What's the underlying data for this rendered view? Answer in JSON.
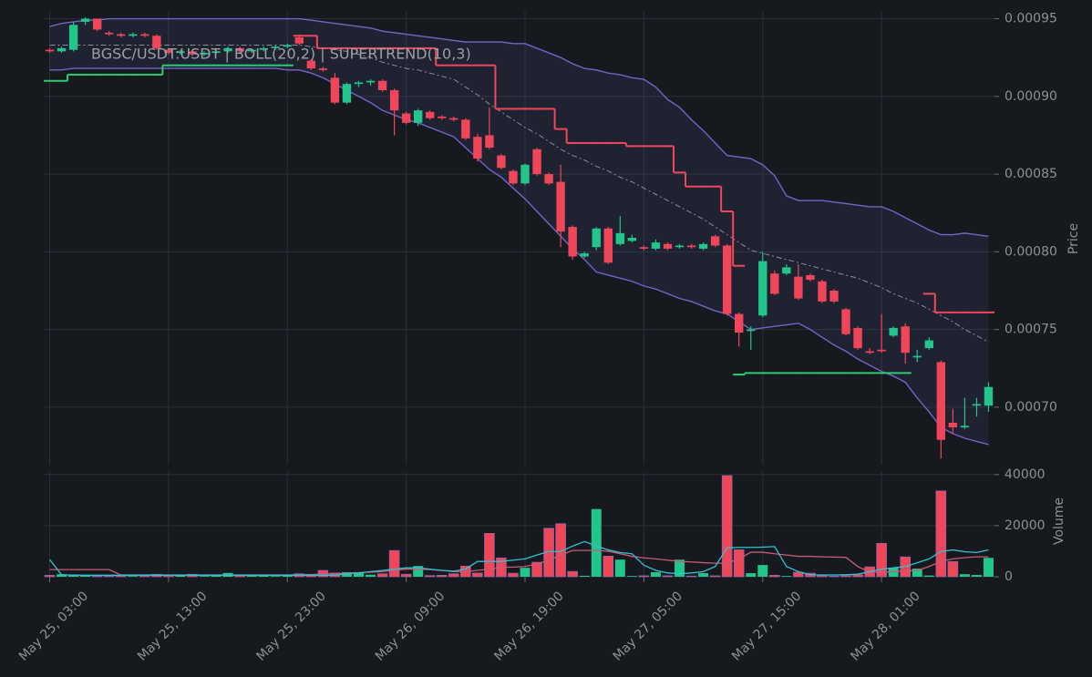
{
  "chart_data": [
    {
      "type": "candlestick",
      "title": "BGSC/USDT:USDT | BOLL(20,2) | SUPERTREND(10,3)",
      "y_label": "Price",
      "up_color": "#22c58b",
      "down_color": "#f0465a",
      "ylim": [
        0.000663,
        0.000955
      ],
      "yticks": [
        {
          "value": 0.0007,
          "label": "0.00070"
        },
        0.00075,
        {
          "value": 0.0008,
          "label": "0.00080"
        },
        0.00085,
        {
          "value": 0.0009,
          "label": "0.00090"
        },
        0.00095
      ],
      "grid": true,
      "open": [
        0.00093,
        0.000929,
        0.00093,
        0.000948,
        0.00095,
        0.000941,
        0.00094,
        0.000939,
        0.00094,
        0.000939,
        0.00093,
        0.000928,
        0.000929,
        0.000927,
        0.000928,
        0.000929,
        0.000931,
        0.000929,
        0.00093,
        0.000931,
        0.000932,
        0.000938,
        0.000923,
        0.000918,
        0.000912,
        0.000896,
        0.000908,
        0.000909,
        0.00091,
        0.000904,
        0.000889,
        0.000883,
        0.00089,
        0.000887,
        0.000886,
        0.000885,
        0.000874,
        0.000875,
        0.000862,
        0.000852,
        0.000844,
        0.000866,
        0.00085,
        0.000845,
        0.000816,
        0.000797,
        0.000803,
        0.000815,
        0.000805,
        0.000807,
        0.000803,
        0.000802,
        0.000805,
        0.000803,
        0.000804,
        0.000802,
        0.00081,
        0.000804,
        0.00076,
        0.000749,
        0.000759,
        0.000786,
        0.000786,
        0.000784,
        0.000785,
        0.000781,
        0.000775,
        0.000763,
        0.000751,
        0.000736,
        0.000737,
        0.000746,
        0.000752,
        0.000732,
        0.000738,
        0.000729,
        0.00069,
        0.000687,
        0.000701,
        0.000701
      ],
      "high": [
        0.000931,
        0.000932,
        0.000948,
        0.000951,
        0.00095,
        0.000942,
        0.000941,
        0.000941,
        0.000941,
        0.00094,
        0.000931,
        0.00093,
        0.00093,
        0.000929,
        0.00093,
        0.000932,
        0.000932,
        0.000931,
        0.000932,
        0.000933,
        0.000934,
        0.00094,
        0.000924,
        0.000919,
        0.000915,
        0.000909,
        0.00091,
        0.000911,
        0.000911,
        0.000905,
        0.00089,
        0.000892,
        0.000891,
        0.000888,
        0.000887,
        0.000886,
        0.000876,
        0.000893,
        0.000863,
        0.000853,
        0.000857,
        0.000867,
        0.000851,
        0.000856,
        0.000817,
        0.0008,
        0.000816,
        0.000816,
        0.000823,
        0.000811,
        0.000804,
        0.000808,
        0.000806,
        0.000805,
        0.000805,
        0.000806,
        0.000811,
        0.000805,
        0.000761,
        0.000752,
        0.0008,
        0.000788,
        0.000792,
        0.000792,
        0.000786,
        0.000782,
        0.000776,
        0.000764,
        0.000752,
        0.000738,
        0.00076,
        0.000752,
        0.000754,
        0.000737,
        0.000745,
        0.00073,
        0.000699,
        0.000706,
        0.000706,
        0.000716
      ],
      "low": [
        0.000928,
        0.000928,
        0.000929,
        0.000946,
        0.000942,
        0.000939,
        0.000938,
        0.000938,
        0.000938,
        0.00093,
        0.000927,
        0.000927,
        0.000926,
        0.000926,
        0.000927,
        0.000928,
        0.000928,
        0.000928,
        0.000929,
        0.00093,
        0.000931,
        0.000933,
        0.000917,
        0.000916,
        0.000895,
        0.000895,
        0.000906,
        0.000907,
        0.000903,
        0.000875,
        0.000882,
        0.000881,
        0.000885,
        0.000885,
        0.000884,
        0.000872,
        0.000858,
        0.000866,
        0.000853,
        0.000843,
        0.000843,
        0.000849,
        0.000843,
        0.000803,
        0.000795,
        0.000796,
        0.000801,
        0.000792,
        0.000804,
        0.000806,
        0.000801,
        0.000801,
        0.000801,
        0.000802,
        0.000802,
        0.000801,
        0.000803,
        0.000759,
        0.000739,
        0.000737,
        0.000758,
        0.000772,
        0.000785,
        0.000769,
        0.000781,
        0.000767,
        0.000767,
        0.000746,
        0.000737,
        0.000734,
        0.000735,
        0.000745,
        0.000728,
        0.000729,
        0.000737,
        0.000667,
        0.000683,
        0.000686,
        0.000694,
        0.000697
      ],
      "close": [
        0.000929,
        0.000931,
        0.000946,
        0.00095,
        0.000943,
        0.00094,
        0.000939,
        0.00094,
        0.000939,
        0.000931,
        0.000928,
        0.000929,
        0.000927,
        0.000928,
        0.000929,
        0.000931,
        0.000929,
        0.00093,
        0.000931,
        0.000932,
        0.000933,
        0.000934,
        0.000918,
        0.000917,
        0.000896,
        0.000908,
        0.000909,
        0.00091,
        0.000904,
        0.000891,
        0.000883,
        0.000891,
        0.000886,
        0.000886,
        0.000885,
        0.000873,
        0.00086,
        0.000867,
        0.000854,
        0.000844,
        0.000856,
        0.00085,
        0.000844,
        0.000813,
        0.000797,
        0.000799,
        0.000815,
        0.000793,
        0.000812,
        0.000809,
        0.000802,
        0.000806,
        0.000802,
        0.000804,
        0.000803,
        0.000805,
        0.000804,
        0.00076,
        0.000748,
        0.00075,
        0.000794,
        0.000773,
        0.00079,
        0.00077,
        0.000782,
        0.000768,
        0.000768,
        0.000747,
        0.000738,
        0.000735,
        0.000736,
        0.000751,
        0.000735,
        0.000733,
        0.000743,
        0.000679,
        0.000687,
        0.000688,
        0.000702,
        0.000713
      ],
      "bollinger": {
        "color": "#7563c9",
        "middle_color": "#8c8c94",
        "fill": "rgba(96,90,170,0.13)",
        "upper": [
          0.000945,
          0.000947,
          0.000948,
          0.000949,
          0.000949,
          0.00095,
          0.00095,
          0.00095,
          0.00095,
          0.00095,
          0.00095,
          0.00095,
          0.00095,
          0.00095,
          0.00095,
          0.00095,
          0.00095,
          0.00095,
          0.00095,
          0.00095,
          0.00095,
          0.00095,
          0.000949,
          0.000948,
          0.000947,
          0.000946,
          0.000945,
          0.000944,
          0.000942,
          0.000941,
          0.00094,
          0.000939,
          0.000938,
          0.000937,
          0.000936,
          0.000935,
          0.000935,
          0.000935,
          0.000935,
          0.000934,
          0.000934,
          0.000931,
          0.000928,
          0.000925,
          0.000921,
          0.000918,
          0.000917,
          0.000915,
          0.000914,
          0.000912,
          0.000911,
          0.000906,
          0.000898,
          0.000893,
          0.000885,
          0.000878,
          0.00087,
          0.000862,
          0.000861,
          0.00086,
          0.000856,
          0.000849,
          0.000836,
          0.000833,
          0.000833,
          0.000833,
          0.000832,
          0.000831,
          0.00083,
          0.000829,
          0.000829,
          0.000826,
          0.000822,
          0.000818,
          0.000814,
          0.000811,
          0.000811,
          0.000812,
          0.000811,
          0.00081
        ],
        "middle": [
          0.000933,
          0.000933,
          0.000933,
          0.000933,
          0.000933,
          0.000933,
          0.000933,
          0.000933,
          0.000933,
          0.000933,
          0.000933,
          0.000933,
          0.000933,
          0.000933,
          0.000933,
          0.000933,
          0.000933,
          0.000933,
          0.000933,
          0.000933,
          0.000933,
          0.000933,
          0.000932,
          0.000931,
          0.00093,
          0.000929,
          0.000927,
          0.000925,
          0.000922,
          0.00092,
          0.000918,
          0.000917,
          0.000915,
          0.000913,
          0.000911,
          0.000906,
          0.000901,
          0.000895,
          0.00089,
          0.000885,
          0.00088,
          0.000876,
          0.000871,
          0.000866,
          0.000862,
          0.000859,
          0.000855,
          0.000852,
          0.000848,
          0.000845,
          0.000841,
          0.000837,
          0.000833,
          0.000829,
          0.000825,
          0.000821,
          0.000816,
          0.000811,
          0.000806,
          0.000801,
          0.000799,
          0.000797,
          0.000795,
          0.000793,
          0.000791,
          0.000789,
          0.000787,
          0.000785,
          0.000783,
          0.00078,
          0.000777,
          0.000773,
          0.00077,
          0.000767,
          0.000763,
          0.000759,
          0.000755,
          0.00075,
          0.000746,
          0.000742
        ],
        "lower": [
          0.000917,
          0.000917,
          0.000918,
          0.000918,
          0.000918,
          0.000918,
          0.000918,
          0.000918,
          0.000918,
          0.000918,
          0.000918,
          0.000918,
          0.000918,
          0.000918,
          0.000918,
          0.000918,
          0.000918,
          0.000918,
          0.000918,
          0.000918,
          0.000917,
          0.000917,
          0.000915,
          0.000912,
          0.000908,
          0.000904,
          0.0009,
          0.000896,
          0.000891,
          0.000888,
          0.000885,
          0.000883,
          0.00088,
          0.000877,
          0.000874,
          0.000867,
          0.00086,
          0.000853,
          0.000848,
          0.000841,
          0.000834,
          0.000826,
          0.000818,
          0.00081,
          0.000802,
          0.000795,
          0.000787,
          0.000785,
          0.000783,
          0.000781,
          0.000778,
          0.000776,
          0.000773,
          0.00077,
          0.000768,
          0.000765,
          0.000762,
          0.00076,
          0.000755,
          0.00075,
          0.000751,
          0.000752,
          0.000753,
          0.000754,
          0.00075,
          0.000745,
          0.00074,
          0.000736,
          0.000731,
          0.000727,
          0.000723,
          0.00072,
          0.000716,
          0.000706,
          0.000697,
          0.000687,
          0.000683,
          0.00068,
          0.000678,
          0.000676
        ]
      },
      "supertrend": [
        {
          "color": "#2ecc71",
          "values": [
            0.00091,
            0.00091,
            0.000914,
            0.000914,
            0.000914,
            0.000914,
            0.000914,
            0.000914,
            0.000914,
            0.000914,
            0.00092,
            0.00092,
            0.00092,
            0.00092,
            0.00092,
            0.00092,
            0.00092,
            0.00092,
            0.00092,
            0.00092,
            0.00092,
            null,
            null,
            null,
            null,
            null,
            null,
            null,
            null,
            null,
            null,
            null,
            null,
            null,
            null,
            null,
            null,
            null,
            null,
            null,
            null,
            null,
            null,
            null,
            null,
            null,
            null,
            null,
            null,
            null,
            null,
            null,
            null,
            null,
            null,
            null,
            null,
            null,
            0.000721,
            0.000722,
            0.000722,
            0.000722,
            0.000722,
            0.000722,
            0.000722,
            0.000722,
            0.000722,
            0.000722,
            0.000722,
            0.000722,
            0.000722,
            0.000722,
            0.000722,
            null,
            null,
            null,
            null,
            null,
            null
          ]
        },
        {
          "color": "#f0475d",
          "values": [
            null,
            null,
            null,
            null,
            null,
            null,
            null,
            null,
            null,
            null,
            null,
            null,
            null,
            null,
            null,
            null,
            null,
            null,
            null,
            null,
            null,
            0.000939,
            0.000939,
            0.000931,
            0.000931,
            0.000931,
            0.000931,
            0.000931,
            0.000931,
            0.000931,
            0.000931,
            0.000931,
            0.000931,
            0.00092,
            0.00092,
            0.00092,
            0.00092,
            0.00092,
            0.000892,
            0.000892,
            0.000892,
            0.000892,
            0.000892,
            0.000879,
            0.00087,
            0.00087,
            0.00087,
            0.00087,
            0.00087,
            0.000868,
            0.000868,
            0.000868,
            0.000868,
            0.000851,
            0.000842,
            0.000842,
            0.000842,
            0.000826,
            0.000791,
            null,
            null,
            null,
            null,
            null,
            null,
            null,
            null,
            null,
            null,
            null,
            null,
            null,
            null,
            null,
            0.000773,
            0.000761,
            0.000761,
            0.000761,
            0.000761,
            0.000761
          ]
        }
      ]
    },
    {
      "type": "bar",
      "y_label": "Volume",
      "ylim": [
        0,
        41000
      ],
      "yticks": [
        0,
        20000,
        40000
      ],
      "xlim": [
        -0.5,
        79.5
      ],
      "xticks": [
        {
          "value": 0,
          "label": "May 25, 03:00"
        },
        {
          "value": 10,
          "label": "May 25, 13:00"
        },
        {
          "value": 20,
          "label": "May 25, 23:00"
        },
        {
          "value": 30,
          "label": "May 26, 09:00"
        },
        {
          "value": 40,
          "label": "May 26, 19:00"
        },
        {
          "value": 50,
          "label": "May 27, 05:00"
        },
        {
          "value": 60,
          "label": "May 27, 15:00"
        },
        {
          "value": 70,
          "label": "May 28, 01:00"
        }
      ],
      "grid": true,
      "values": [
        600,
        1000,
        900,
        500,
        300,
        300,
        400,
        300,
        400,
        1000,
        600,
        500,
        1000,
        300,
        500,
        1500,
        600,
        400,
        500,
        300,
        400,
        1200,
        800,
        2500,
        1500,
        1800,
        1800,
        800,
        1200,
        10300,
        1000,
        4200,
        500,
        600,
        1200,
        4200,
        1500,
        17000,
        7400,
        1400,
        3500,
        5700,
        19000,
        20800,
        2100,
        400,
        26500,
        8100,
        6700,
        300,
        400,
        1800,
        400,
        6700,
        300,
        1400,
        400,
        39600,
        10600,
        1400,
        4600,
        600,
        300,
        1800,
        1400,
        500,
        300,
        500,
        800,
        3900,
        13100,
        3500,
        7800,
        3200,
        500,
        33600,
        6000,
        1000,
        700,
        7400
      ],
      "series": [
        {
          "color": "#c95a78",
          "values": [
            2800,
            2800,
            2800,
            2800,
            2800,
            2800,
            700,
            700,
            700,
            700,
            700,
            700,
            700,
            700,
            700,
            700,
            700,
            700,
            700,
            700,
            700,
            800,
            900,
            1000,
            1200,
            1400,
            1600,
            1800,
            2000,
            2500,
            3000,
            3000,
            2800,
            2500,
            2000,
            2000,
            2500,
            3000,
            3700,
            3800,
            4000,
            5000,
            6500,
            8500,
            10300,
            10300,
            10300,
            10000,
            9000,
            8000,
            7400,
            7000,
            6500,
            6000,
            5800,
            5500,
            5300,
            5300,
            7000,
            9600,
            9600,
            9000,
            8500,
            8000,
            8000,
            7800,
            7700,
            7600,
            4000,
            1800,
            1800,
            2000,
            2200,
            2500,
            4000,
            6000,
            7000,
            7500,
            7800,
            7800
          ]
        },
        {
          "color": "#35c0d4",
          "values": [
            6700,
            800,
            600,
            600,
            600,
            600,
            600,
            600,
            600,
            600,
            600,
            600,
            600,
            600,
            600,
            600,
            600,
            600,
            600,
            600,
            600,
            600,
            600,
            600,
            600,
            1200,
            1500,
            2000,
            2500,
            3000,
            3500,
            3500,
            3000,
            2500,
            2200,
            3000,
            6000,
            6000,
            6000,
            6500,
            7000,
            8500,
            9900,
            9900,
            12000,
            13800,
            12000,
            10500,
            9500,
            9000,
            4500,
            2500,
            1500,
            1200,
            1500,
            2000,
            4000,
            11300,
            11500,
            11500,
            11600,
            11800,
            4000,
            2000,
            800,
            700,
            700,
            800,
            1000,
            2000,
            3000,
            3500,
            4000,
            5500,
            7000,
            9900,
            10500,
            9800,
            9500,
            10500
          ]
        }
      ]
    }
  ]
}
